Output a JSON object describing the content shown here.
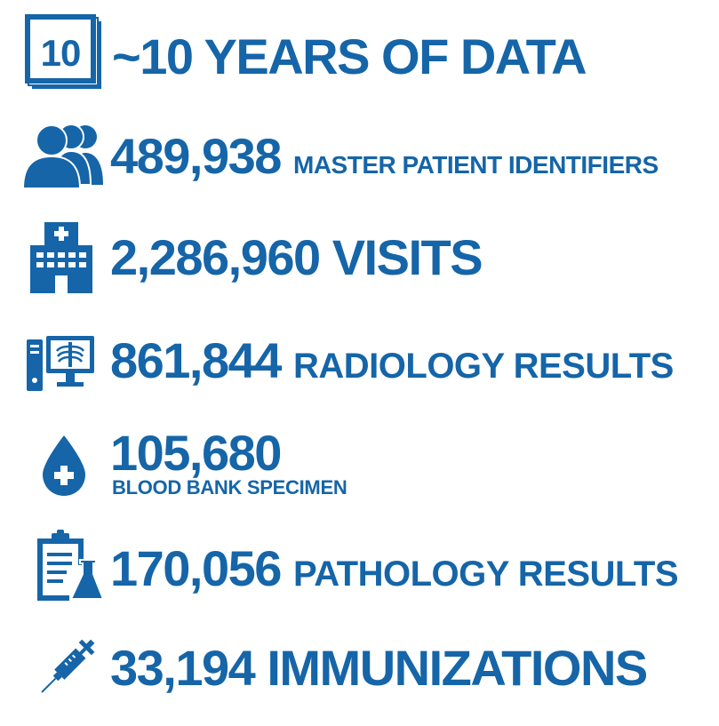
{
  "accent_color": "#1565a8",
  "stats": {
    "years": {
      "icon": "calendar-icon",
      "calendar_day": "10",
      "text": "~10 YEARS OF DATA"
    },
    "patients": {
      "icon": "users-icon",
      "value": "489,938",
      "label": "MASTER PATIENT IDENTIFIERS"
    },
    "visits": {
      "icon": "hospital-icon",
      "value": "2,286,960",
      "label": "VISITS"
    },
    "radiology": {
      "icon": "radiology-monitor-icon",
      "value": "861,844",
      "label": "RADIOLOGY RESULTS"
    },
    "blood": {
      "icon": "blood-drop-icon",
      "value": "105,680",
      "label": "BLOOD BANK SPECIMEN"
    },
    "pathology": {
      "icon": "clipboard-flask-icon",
      "value": "170,056",
      "label": "PATHOLOGY RESULTS"
    },
    "immunizations": {
      "icon": "syringe-icon",
      "value": "33,194",
      "label": "IMMUNIZATIONS"
    }
  }
}
